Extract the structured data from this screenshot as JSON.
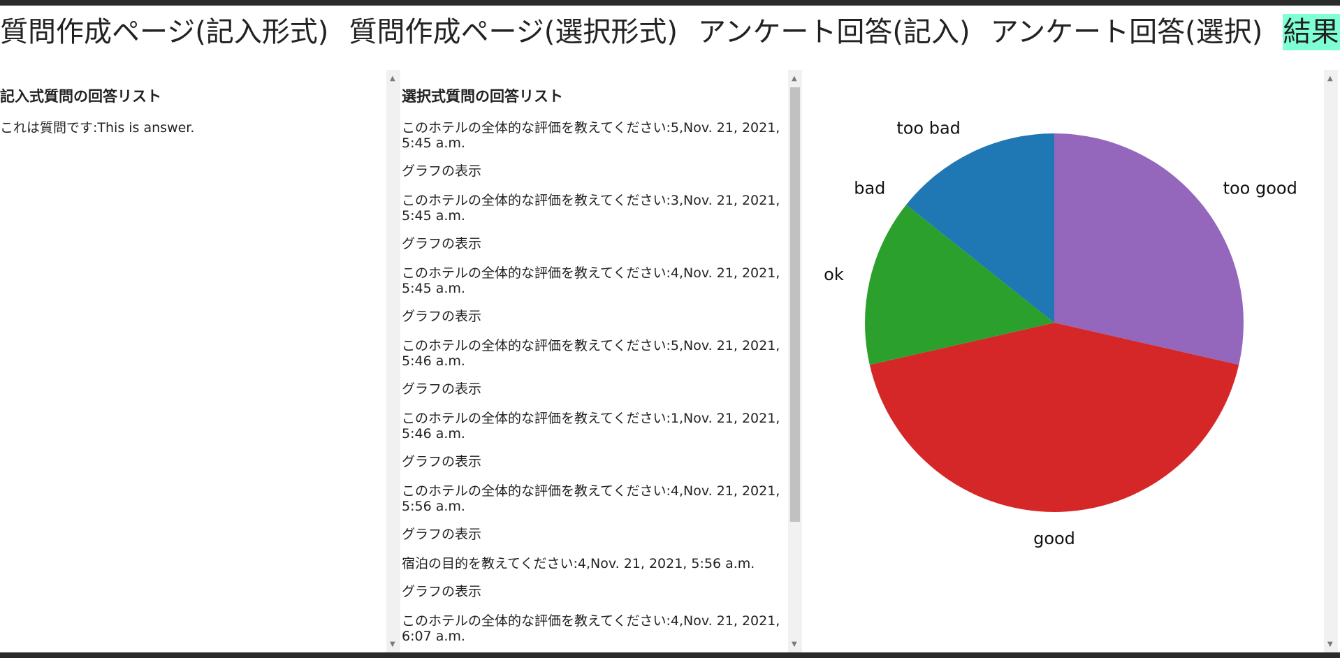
{
  "nav": [
    {
      "label": "質問作成ページ(記入形式)"
    },
    {
      "label": "質問作成ページ(選択形式)"
    },
    {
      "label": "アンケート回答(記入)"
    },
    {
      "label": "アンケート回答(選択)"
    },
    {
      "label": "結果閲覧"
    }
  ],
  "text_answers": {
    "heading": "記入式質問の回答リスト",
    "items": [
      "これは質問です:This is answer."
    ]
  },
  "choice_answers": {
    "heading": "選択式質問の回答リスト",
    "graph_link_label": "グラフの表示",
    "items": [
      "このホテルの全体的な評価を教えてください:5,Nov. 21, 2021, 5:45 a.m.",
      "このホテルの全体的な評価を教えてください:3,Nov. 21, 2021, 5:45 a.m.",
      "このホテルの全体的な評価を教えてください:4,Nov. 21, 2021, 5:45 a.m.",
      "このホテルの全体的な評価を教えてください:5,Nov. 21, 2021, 5:46 a.m.",
      "このホテルの全体的な評価を教えてください:1,Nov. 21, 2021, 5:46 a.m.",
      "このホテルの全体的な評価を教えてください:4,Nov. 21, 2021, 5:56 a.m.",
      "宿泊の目的を教えてください:4,Nov. 21, 2021, 5:56 a.m.",
      "このホテルの全体的な評価を教えてください:4,Nov. 21, 2021, 6:07 a.m."
    ]
  },
  "chart_data": {
    "type": "pie",
    "title": "",
    "slices": [
      {
        "label": "too good",
        "value": 2,
        "color": "#9467bd"
      },
      {
        "label": "good",
        "value": 3,
        "color": "#d62728"
      },
      {
        "label": "ok",
        "value": 1,
        "color": "#2ca02c"
      },
      {
        "label": "bad",
        "value": 0,
        "color": "#ff7f0e"
      },
      {
        "label": "too bad",
        "value": 1,
        "color": "#1f77b4"
      }
    ]
  },
  "colors": {
    "active_nav": "#7fffd4"
  }
}
